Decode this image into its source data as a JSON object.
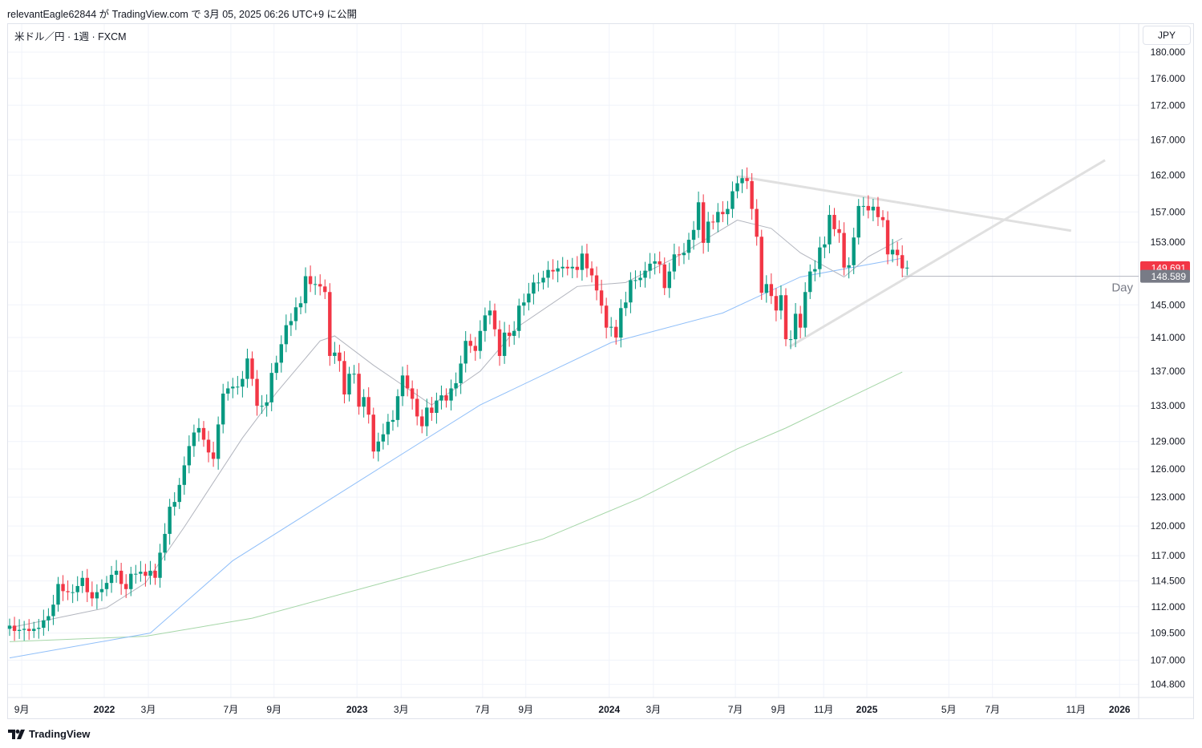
{
  "header": {
    "published": "relevantEagle62844 が TradingView.com で 3月 05, 2025 06:26 UTC+9 に公開",
    "symbol": "米ドル／円 · 1週 · FXCM",
    "currency_button": "JPY"
  },
  "footer": {
    "brand": "TradingView"
  },
  "chart_data": {
    "type": "candlestick",
    "title": "米ドル／円 · 1週 · FXCM",
    "scale": "log",
    "ylim": [
      104.8,
      180
    ],
    "start_week": "2021-08-02",
    "weekly_close": [
      110.2,
      109.7,
      109.8,
      109.9,
      109.7,
      109.9,
      110.0,
      110.7,
      111.1,
      112.2,
      114.2,
      113.5,
      113.4,
      113.4,
      114.0,
      114.8,
      113.4,
      112.8,
      113.4,
      113.7,
      114.3,
      115.1,
      115.5,
      114.2,
      113.7,
      115.2,
      115.2,
      115.4,
      115.0,
      115.5,
      114.8,
      117.3,
      119.2,
      122.0,
      122.5,
      124.3,
      126.4,
      128.5,
      130.0,
      130.5,
      129.2,
      127.8,
      127.1,
      130.9,
      134.4,
      135.0,
      135.2,
      135.2,
      136.1,
      138.5,
      136.1,
      133.0,
      133.0,
      133.4,
      136.8,
      138.0,
      140.2,
      142.5,
      143.0,
      144.7,
      145.2,
      148.6,
      147.6,
      147.6,
      147.3,
      146.6,
      138.8,
      139.2,
      138.2,
      134.3,
      136.7,
      136.7,
      132.9,
      134.0,
      132.0,
      127.9,
      129.0,
      129.8,
      131.2,
      131.4,
      134.1,
      136.5,
      135.0,
      133.8,
      131.8,
      130.7,
      132.8,
      132.2,
      133.6,
      134.2,
      133.6,
      135.0,
      135.6,
      137.9,
      140.6,
      140.0,
      139.4,
      141.8,
      143.7,
      144.3,
      142.0,
      138.8,
      141.6,
      141.2,
      141.8,
      144.9,
      145.3,
      146.4,
      147.8,
      147.8,
      148.4,
      149.4,
      149.2,
      149.6,
      149.8,
      149.6,
      149.8,
      149.4,
      151.5,
      149.6,
      148.7,
      146.8,
      144.9,
      142.2,
      142.3,
      141.0,
      144.6,
      145.3,
      148.1,
      148.1,
      148.4,
      149.3,
      150.2,
      150.5,
      150.1,
      147.1,
      149.2,
      151.4,
      151.3,
      151.6,
      153.3,
      154.6,
      158.3,
      152.9,
      155.7,
      155.6,
      157.0,
      156.7,
      157.4,
      159.8,
      160.9,
      161.6,
      161.2,
      157.4,
      153.7,
      146.5,
      147.6,
      146.1,
      144.3,
      146.2,
      140.8,
      140.8,
      143.9,
      142.2,
      146.6,
      149.2,
      149.5,
      152.3,
      152.7,
      156.6,
      154.7,
      154.2,
      149.7,
      150.0,
      153.6,
      157.8,
      157.8,
      157.2,
      157.7,
      156.3,
      155.9,
      151.4,
      152.0,
      151.3,
      149.6,
      149.691
    ],
    "ma_short": [
      [
        0,
        110
      ],
      [
        20,
        111.9
      ],
      [
        28,
        114.3
      ],
      [
        36,
        119.9
      ],
      [
        48,
        129.4
      ],
      [
        55,
        134.5
      ],
      [
        64,
        140.6
      ],
      [
        67,
        141.2
      ],
      [
        75,
        137.7
      ],
      [
        87,
        133.1
      ],
      [
        97,
        137
      ],
      [
        105,
        142.4
      ],
      [
        117,
        147.3
      ],
      [
        127,
        147.8
      ],
      [
        137,
        150.9
      ],
      [
        150,
        155.9
      ],
      [
        157,
        154.8
      ],
      [
        163,
        151.6
      ],
      [
        172,
        148.5
      ],
      [
        177,
        151.1
      ],
      [
        184,
        153.5
      ]
    ],
    "ma_mid": [
      [
        0,
        107.2
      ],
      [
        29,
        109.5
      ],
      [
        46,
        116.5
      ],
      [
        72,
        124.7
      ],
      [
        97,
        133.1
      ],
      [
        124,
        140.4
      ],
      [
        147,
        144.0
      ],
      [
        163,
        148.5
      ],
      [
        184,
        150.9
      ]
    ],
    "ma_long": [
      [
        0,
        108.7
      ],
      [
        28,
        109.2
      ],
      [
        50,
        110.9
      ],
      [
        80,
        114.7
      ],
      [
        110,
        118.7
      ],
      [
        130,
        122.9
      ],
      [
        150,
        128.2
      ],
      [
        160,
        130.5
      ],
      [
        184,
        136.9
      ]
    ],
    "trendlines": [
      [
        [
          149.8,
          161.9
        ],
        [
          218.8,
          154.5
        ]
      ],
      [
        [
          160.8,
          139.9
        ],
        [
          225.8,
          164.1
        ]
      ]
    ],
    "hline": {
      "value": 148.589,
      "label": "Day"
    },
    "last_price": {
      "label": "149.691",
      "color": "#f23645"
    },
    "line_price": {
      "label": "148.589",
      "color": "#787b86"
    },
    "up_color": "#089981",
    "down_color": "#f23645",
    "y_ticks": [
      "180.000",
      "176.000",
      "172.000",
      "167.000",
      "162.000",
      "157.000",
      "153.000",
      "145.000",
      "141.000",
      "137.000",
      "133.000",
      "129.000",
      "126.000",
      "123.000",
      "120.000",
      "117.000",
      "114.500",
      "112.000",
      "109.500",
      "107.000",
      "104.800"
    ],
    "x_ticks": [
      [
        "9月",
        2.5
      ],
      [
        "2022",
        19.5
      ],
      [
        "3月",
        28.6
      ],
      [
        "7月",
        45.6
      ],
      [
        "9月",
        54.5
      ],
      [
        "2023",
        71.6
      ],
      [
        "3月",
        80.7
      ],
      [
        "7月",
        97.5
      ],
      [
        "9月",
        106.4
      ],
      [
        "2024",
        123.6
      ],
      [
        "3月",
        132.7
      ],
      [
        "7月",
        149.6
      ],
      [
        "9月",
        158.5
      ],
      [
        "11月",
        167.8
      ],
      [
        "2025",
        176.7
      ],
      [
        "5月",
        193.6
      ],
      [
        "7月",
        202.6
      ],
      [
        "11月",
        219.8
      ],
      [
        "2026",
        228.8
      ]
    ]
  }
}
